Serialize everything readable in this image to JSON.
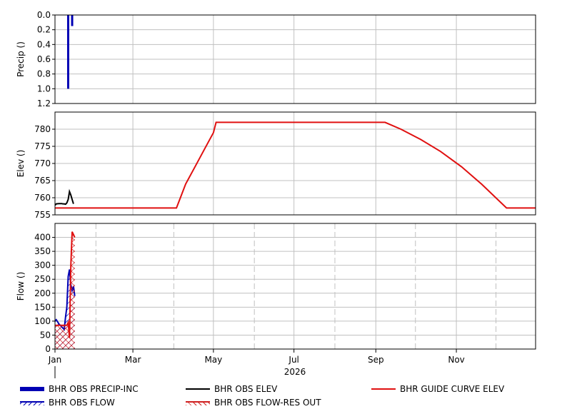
{
  "chart_data": [
    {
      "type": "bar",
      "panel": "precip",
      "ylabel": "Precip ()",
      "ylim": [
        1.2,
        0.0
      ],
      "inverted": true,
      "yticks": [
        "0.0",
        "0.2",
        "0.4",
        "0.6",
        "0.8",
        "1.0",
        "1.2"
      ],
      "grid": true,
      "series": [
        {
          "name": "BHR OBS PRECIP-INC",
          "color": "#0000b4",
          "x": [
            "2026-01-11",
            "2026-01-14"
          ],
          "values": [
            1.0,
            0.15
          ]
        }
      ]
    },
    {
      "type": "line",
      "panel": "elev",
      "ylabel": "Elev ()",
      "ylim": [
        755,
        785
      ],
      "yticks": [
        "755",
        "760",
        "765",
        "770",
        "775",
        "780"
      ],
      "grid": true,
      "series": [
        {
          "name": "BHR OBS ELEV",
          "color": "#000000",
          "x": [
            "2026-01-01",
            "2026-01-02",
            "2026-01-04",
            "2026-01-06",
            "2026-01-07",
            "2026-01-08",
            "2026-01-09",
            "2026-01-10",
            "2026-01-11",
            "2026-01-12",
            "2026-01-13",
            "2026-01-14",
            "2026-01-15"
          ],
          "values": [
            757.8,
            758.2,
            758.3,
            758.3,
            758.2,
            758.2,
            758.1,
            758.5,
            759.5,
            761.8,
            760.8,
            759.5,
            758.2
          ]
        },
        {
          "name": "BHR GUIDE CURVE ELEV",
          "color": "#e01010",
          "x": [
            "2026-01-01",
            "2026-04-03",
            "2026-04-10",
            "2026-04-17",
            "2026-04-24",
            "2026-05-01",
            "2026-05-03",
            "2026-09-08",
            "2026-09-20",
            "2026-10-05",
            "2026-10-20",
            "2026-11-05",
            "2026-11-20",
            "2026-12-09",
            "2026-12-31"
          ],
          "values": [
            757,
            757,
            764,
            769,
            774,
            779,
            782,
            782,
            780,
            777,
            773.5,
            769,
            764,
            757,
            757
          ]
        }
      ]
    },
    {
      "type": "area",
      "panel": "flow",
      "ylabel": "Flow ()",
      "ylim": [
        0,
        450
      ],
      "yticks": [
        "0",
        "50",
        "100",
        "150",
        "200",
        "250",
        "300",
        "350",
        "400"
      ],
      "xticks": [
        "Jan",
        "Mar",
        "May",
        "Jul",
        "Sep",
        "Nov"
      ],
      "xtick_dates": [
        "2026-01-01",
        "2026-03-01",
        "2026-05-01",
        "2026-07-01",
        "2026-09-01",
        "2026-11-01"
      ],
      "minor_grid_dates": [
        "2026-02-01",
        "2026-04-01",
        "2026-06-01",
        "2026-08-01",
        "2026-10-01",
        "2026-12-01"
      ],
      "xlabel": "2026",
      "xlim": [
        "2026-01-01",
        "2026-12-31"
      ],
      "grid": true,
      "series": [
        {
          "name": "BHR OBS FLOW",
          "color": "#0000b4",
          "x": [
            "2026-01-01",
            "2026-01-02",
            "2026-01-04",
            "2026-01-06",
            "2026-01-08",
            "2026-01-09",
            "2026-01-10",
            "2026-01-11",
            "2026-01-12",
            "2026-01-13",
            "2026-01-14",
            "2026-01-15",
            "2026-01-16"
          ],
          "values": [
            100,
            105,
            90,
            80,
            70,
            115,
            150,
            260,
            285,
            230,
            210,
            225,
            190
          ]
        },
        {
          "name": "BHR OBS FLOW-RES OUT",
          "color": "#e01010",
          "x": [
            "2026-01-01",
            "2026-01-03",
            "2026-01-06",
            "2026-01-09",
            "2026-01-10",
            "2026-01-11",
            "2026-01-12",
            "2026-01-13",
            "2026-01-14",
            "2026-01-15",
            "2026-01-16"
          ],
          "values": [
            85,
            85,
            85,
            85,
            85,
            95,
            40,
            300,
            420,
            410,
            400
          ]
        }
      ]
    }
  ],
  "legend": {
    "items": [
      "BHR OBS PRECIP-INC",
      "BHR OBS ELEV",
      "BHR GUIDE CURVE ELEV",
      "BHR OBS FLOW",
      "BHR OBS FLOW-RES OUT"
    ]
  }
}
